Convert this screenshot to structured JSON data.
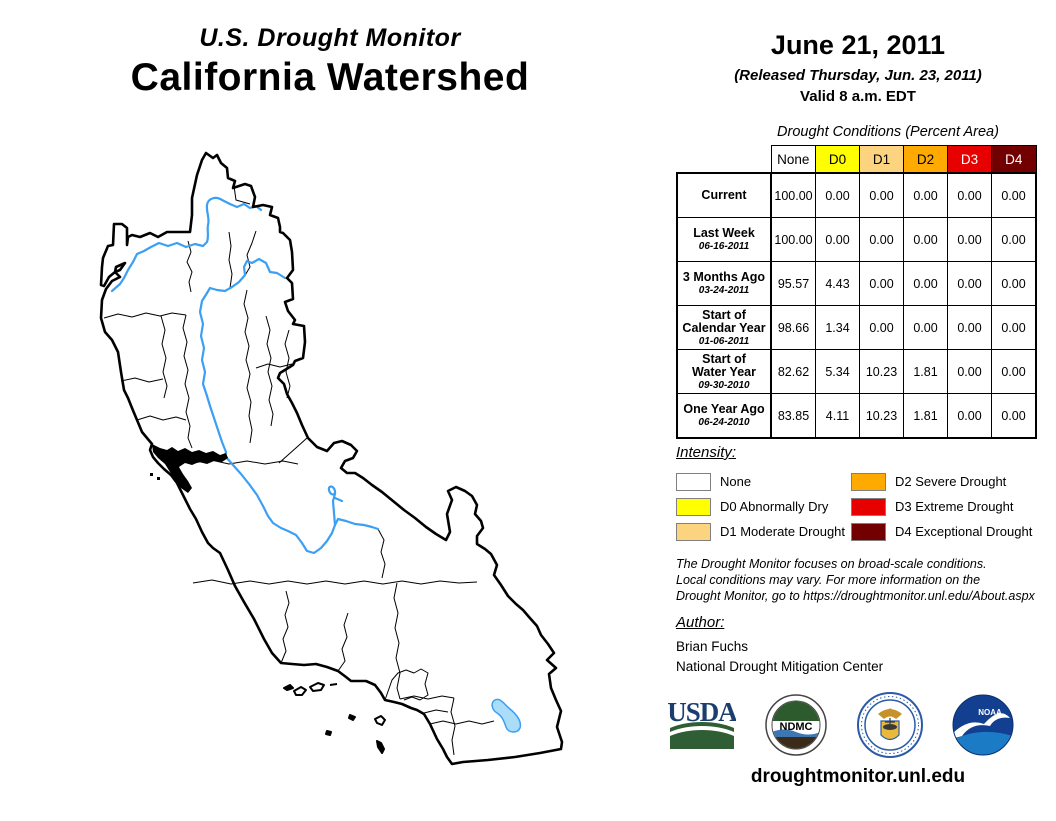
{
  "header": {
    "kicker": "U.S. Drought Monitor",
    "title": "California Watershed",
    "date": "June 21, 2011",
    "released": "(Released Thursday, Jun. 23, 2011)",
    "valid": "Valid 8 a.m. EDT"
  },
  "map": {
    "name": "California Watershed drought map",
    "river_color": "#3B9FF3",
    "lake_fill": "#ABDCF8",
    "boundary_color": "#000000"
  },
  "table": {
    "title": "Drought Conditions (Percent Area)",
    "columns": [
      "None",
      "D0",
      "D1",
      "D2",
      "D3",
      "D4"
    ],
    "column_colors": [
      "#FFFFFF",
      "#FFFF00",
      "#FCD37F",
      "#FFAA00",
      "#E60000",
      "#730000"
    ],
    "column_text_colors": [
      "#000000",
      "#000000",
      "#000000",
      "#000000",
      "#FFFFFF",
      "#FFFFFF"
    ],
    "rows": [
      {
        "label_lines": [
          "Current"
        ],
        "date": "",
        "values": [
          "100.00",
          "0.00",
          "0.00",
          "0.00",
          "0.00",
          "0.00"
        ]
      },
      {
        "label_lines": [
          "Last Week"
        ],
        "date": "06-16-2011",
        "values": [
          "100.00",
          "0.00",
          "0.00",
          "0.00",
          "0.00",
          "0.00"
        ]
      },
      {
        "label_lines": [
          "3 Months Ago"
        ],
        "date": "03-24-2011",
        "values": [
          "95.57",
          "4.43",
          "0.00",
          "0.00",
          "0.00",
          "0.00"
        ]
      },
      {
        "label_lines": [
          "Start of",
          "Calendar Year"
        ],
        "date": "01-06-2011",
        "values": [
          "98.66",
          "1.34",
          "0.00",
          "0.00",
          "0.00",
          "0.00"
        ]
      },
      {
        "label_lines": [
          "Start of",
          "Water Year"
        ],
        "date": "09-30-2010",
        "values": [
          "82.62",
          "5.34",
          "10.23",
          "1.81",
          "0.00",
          "0.00"
        ]
      },
      {
        "label_lines": [
          "One Year Ago"
        ],
        "date": "06-24-2010",
        "values": [
          "83.85",
          "4.11",
          "10.23",
          "1.81",
          "0.00",
          "0.00"
        ]
      }
    ]
  },
  "legend": {
    "title": "Intensity:",
    "items": [
      {
        "label": "None",
        "color": "#FFFFFF"
      },
      {
        "label": "D0 Abnormally Dry",
        "color": "#FFFF00"
      },
      {
        "label": "D1 Moderate Drought",
        "color": "#FCD37F"
      },
      {
        "label": "D2 Severe Drought",
        "color": "#FFAA00"
      },
      {
        "label": "D3 Extreme Drought",
        "color": "#E60000"
      },
      {
        "label": "D4 Exceptional Drought",
        "color": "#730000"
      }
    ]
  },
  "disclaimer_lines": [
    "The Drought Monitor focuses on broad-scale conditions.",
    "Local conditions may vary. For more information on the",
    "Drought Monitor, go to https://droughtmonitor.unl.edu/About.aspx"
  ],
  "author": {
    "heading": "Author:",
    "name": "Brian Fuchs",
    "organization": "National Drought Mitigation Center"
  },
  "footer": {
    "url": "droughtmonitor.unl.edu",
    "logos": {
      "usda": "USDA",
      "ndmc": "NDMC",
      "noaa": "NOAA",
      "commerce": "DEPARTMENT OF COMMERCE"
    }
  },
  "chart_data": {
    "type": "table",
    "title": "Drought Conditions (Percent Area)",
    "categories": [
      "None",
      "D0",
      "D1",
      "D2",
      "D3",
      "D4"
    ],
    "series": [
      {
        "name": "Current",
        "values": [
          100.0,
          0.0,
          0.0,
          0.0,
          0.0,
          0.0
        ]
      },
      {
        "name": "Last Week 06-16-2011",
        "values": [
          100.0,
          0.0,
          0.0,
          0.0,
          0.0,
          0.0
        ]
      },
      {
        "name": "3 Months Ago 03-24-2011",
        "values": [
          95.57,
          4.43,
          0.0,
          0.0,
          0.0,
          0.0
        ]
      },
      {
        "name": "Start of Calendar Year 01-06-2011",
        "values": [
          98.66,
          1.34,
          0.0,
          0.0,
          0.0,
          0.0
        ]
      },
      {
        "name": "Start of Water Year 09-30-2010",
        "values": [
          82.62,
          5.34,
          10.23,
          1.81,
          0.0,
          0.0
        ]
      },
      {
        "name": "One Year Ago 06-24-2010",
        "values": [
          83.85,
          4.11,
          10.23,
          1.81,
          0.0,
          0.0
        ]
      }
    ]
  }
}
